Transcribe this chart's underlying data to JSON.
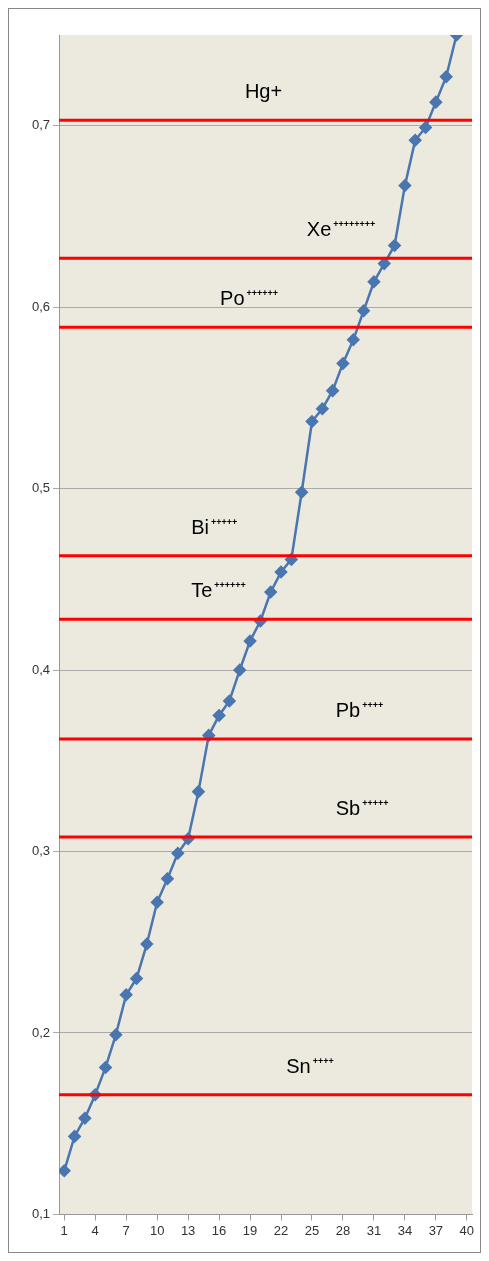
{
  "chart_data": {
    "type": "line",
    "x": [
      1,
      2,
      3,
      4,
      5,
      6,
      7,
      8,
      9,
      10,
      11,
      12,
      13,
      14,
      15,
      16,
      17,
      18,
      19,
      20,
      21,
      22,
      23,
      24,
      25,
      26,
      27,
      28,
      29,
      30,
      31,
      32,
      33,
      34,
      35,
      36,
      37,
      38,
      39
    ],
    "series": [
      {
        "color": "#4a76b0",
        "values": [
          0.124,
          0.143,
          0.153,
          0.166,
          0.181,
          0.199,
          0.221,
          0.23,
          0.249,
          0.272,
          0.285,
          0.299,
          0.307,
          0.333,
          0.364,
          0.375,
          0.383,
          0.4,
          0.416,
          0.427,
          0.443,
          0.454,
          0.461,
          0.498,
          0.537,
          0.544,
          0.554,
          0.569,
          0.582,
          0.598,
          0.614,
          0.624,
          0.634,
          0.667,
          0.692,
          0.699,
          0.713,
          0.727,
          0.75
        ]
      }
    ],
    "xlim": [
      0.5,
      40.5
    ],
    "xticks": [
      1,
      4,
      7,
      10,
      13,
      16,
      19,
      22,
      25,
      28,
      31,
      34,
      37,
      40
    ],
    "ylim": [
      0.1,
      0.75
    ],
    "yticks": [
      {
        "value": 0.1,
        "label": "0,1"
      },
      {
        "value": 0.2,
        "label": "0,2"
      },
      {
        "value": 0.3,
        "label": "0,3"
      },
      {
        "value": 0.4,
        "label": "0,4"
      },
      {
        "value": 0.5,
        "label": "0,5"
      },
      {
        "value": 0.6,
        "label": "0,6"
      },
      {
        "value": 0.7,
        "label": "0,7"
      }
    ],
    "grid": "y",
    "marker": "diamond",
    "line_style": "solid",
    "ref_lines": [
      {
        "axis": "y",
        "value": 0.703,
        "label": "Hg+",
        "color": "#ff0000"
      },
      {
        "axis": "y",
        "value": 0.627,
        "label": "Xe$^{++++++++}$",
        "color": "#ff0000"
      },
      {
        "axis": "y",
        "value": 0.589,
        "label": "Po$^{++++++}$",
        "color": "#ff0000"
      },
      {
        "axis": "y",
        "value": 0.463,
        "label": "Bi$^{+++++}$",
        "color": "#ff0000"
      },
      {
        "axis": "y",
        "value": 0.428,
        "label": "Te$^{++++++}$",
        "color": "#ff0000"
      },
      {
        "axis": "y",
        "value": 0.362,
        "label": "Pb$^{++++}$",
        "color": "#ff0000"
      },
      {
        "axis": "y",
        "value": 0.308,
        "label": "Sb$^{+++++}$",
        "color": "#ff0000"
      },
      {
        "axis": "y",
        "value": 0.166,
        "label": "Sn$^{++++}$",
        "color": "#ff0000"
      }
    ]
  }
}
